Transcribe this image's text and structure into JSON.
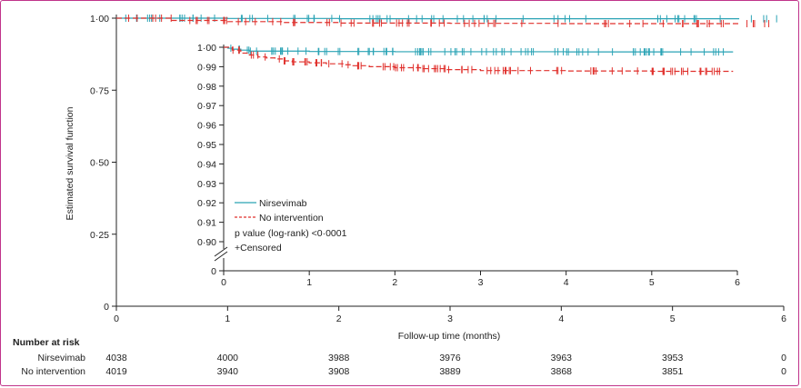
{
  "chart_data": [
    {
      "type": "line",
      "panel": "main",
      "xlabel": "Follow-up time (months)",
      "ylabel": "Estimated survival function",
      "xlim": [
        0,
        6
      ],
      "ylim": [
        0,
        1.0
      ],
      "x_ticks": [
        "0",
        "1",
        "2",
        "3",
        "4",
        "5",
        "6"
      ],
      "y_ticks": [
        "0",
        "0·25",
        "0·50",
        "0·75",
        "1·00"
      ],
      "series": [
        {
          "name": "Nirsevimab",
          "color": "#2aa3b5",
          "style": "solid",
          "x": [
            0,
            1,
            2,
            3,
            4,
            5,
            5.6
          ],
          "y": [
            1.0,
            0.999,
            0.998,
            0.998,
            0.998,
            0.998,
            0.998
          ]
        },
        {
          "name": "No intervention",
          "color": "#e0302c",
          "style": "dashed",
          "x": [
            0,
            0.5,
            1,
            1.5,
            2,
            3,
            4,
            5,
            5.6
          ],
          "y": [
            1.0,
            0.992,
            0.988,
            0.985,
            0.983,
            0.982,
            0.981,
            0.981,
            0.981
          ]
        }
      ]
    },
    {
      "type": "line",
      "panel": "inset",
      "xlim": [
        0,
        6
      ],
      "ylim": [
        0.9,
        1.0
      ],
      "axis_break": true,
      "x_ticks": [
        "0",
        "1",
        "2",
        "3",
        "4",
        "5",
        "6"
      ],
      "y_ticks": [
        "1·00",
        "0·99",
        "0·98",
        "0·97",
        "0·96",
        "0·95",
        "0·94",
        "0·93",
        "0·92",
        "0·91",
        "0·90",
        "0"
      ],
      "series": [
        {
          "name": "Nirsevimab",
          "color": "#2aa3b5",
          "style": "solid",
          "x": [
            0,
            0.05,
            0.1,
            0.2,
            0.3,
            0.5,
            1,
            2,
            3,
            4,
            5,
            5.95
          ],
          "y": [
            1.0,
            0.9995,
            0.999,
            0.9985,
            0.998,
            0.998,
            0.9978,
            0.9977,
            0.9977,
            0.9976,
            0.9976,
            0.9976
          ]
        },
        {
          "name": "No intervention",
          "color": "#e0302c",
          "style": "dashed",
          "x": [
            0,
            0.1,
            0.2,
            0.3,
            0.4,
            0.5,
            0.6,
            0.7,
            0.8,
            1.0,
            1.2,
            1.4,
            1.5,
            1.7,
            2.0,
            2.3,
            2.6,
            3.0,
            3.5,
            4.0,
            4.5,
            5.0,
            5.5,
            5.95
          ],
          "y": [
            1.0,
            0.9985,
            0.997,
            0.996,
            0.995,
            0.9945,
            0.994,
            0.993,
            0.9925,
            0.992,
            0.9915,
            0.991,
            0.9905,
            0.99,
            0.9895,
            0.989,
            0.9885,
            0.988,
            0.988,
            0.9878,
            0.9878,
            0.9876,
            0.9876,
            0.9876
          ]
        }
      ],
      "legend": {
        "placement": "bottom-left",
        "items": [
          "Nirsevimab",
          "No intervention"
        ],
        "pvalue": "p value (log-rank) <0·0001",
        "censored": "+Censored"
      }
    }
  ],
  "risk_table": {
    "title": "Number at risk",
    "times": [
      0,
      1,
      2,
      3,
      4,
      5,
      6
    ],
    "rows": [
      {
        "name": "Nirsevimab",
        "values": [
          "4038",
          "4000",
          "3988",
          "3976",
          "3963",
          "3953",
          "0"
        ]
      },
      {
        "name": "No intervention",
        "values": [
          "4019",
          "3940",
          "3908",
          "3889",
          "3868",
          "3851",
          "0"
        ]
      }
    ]
  }
}
